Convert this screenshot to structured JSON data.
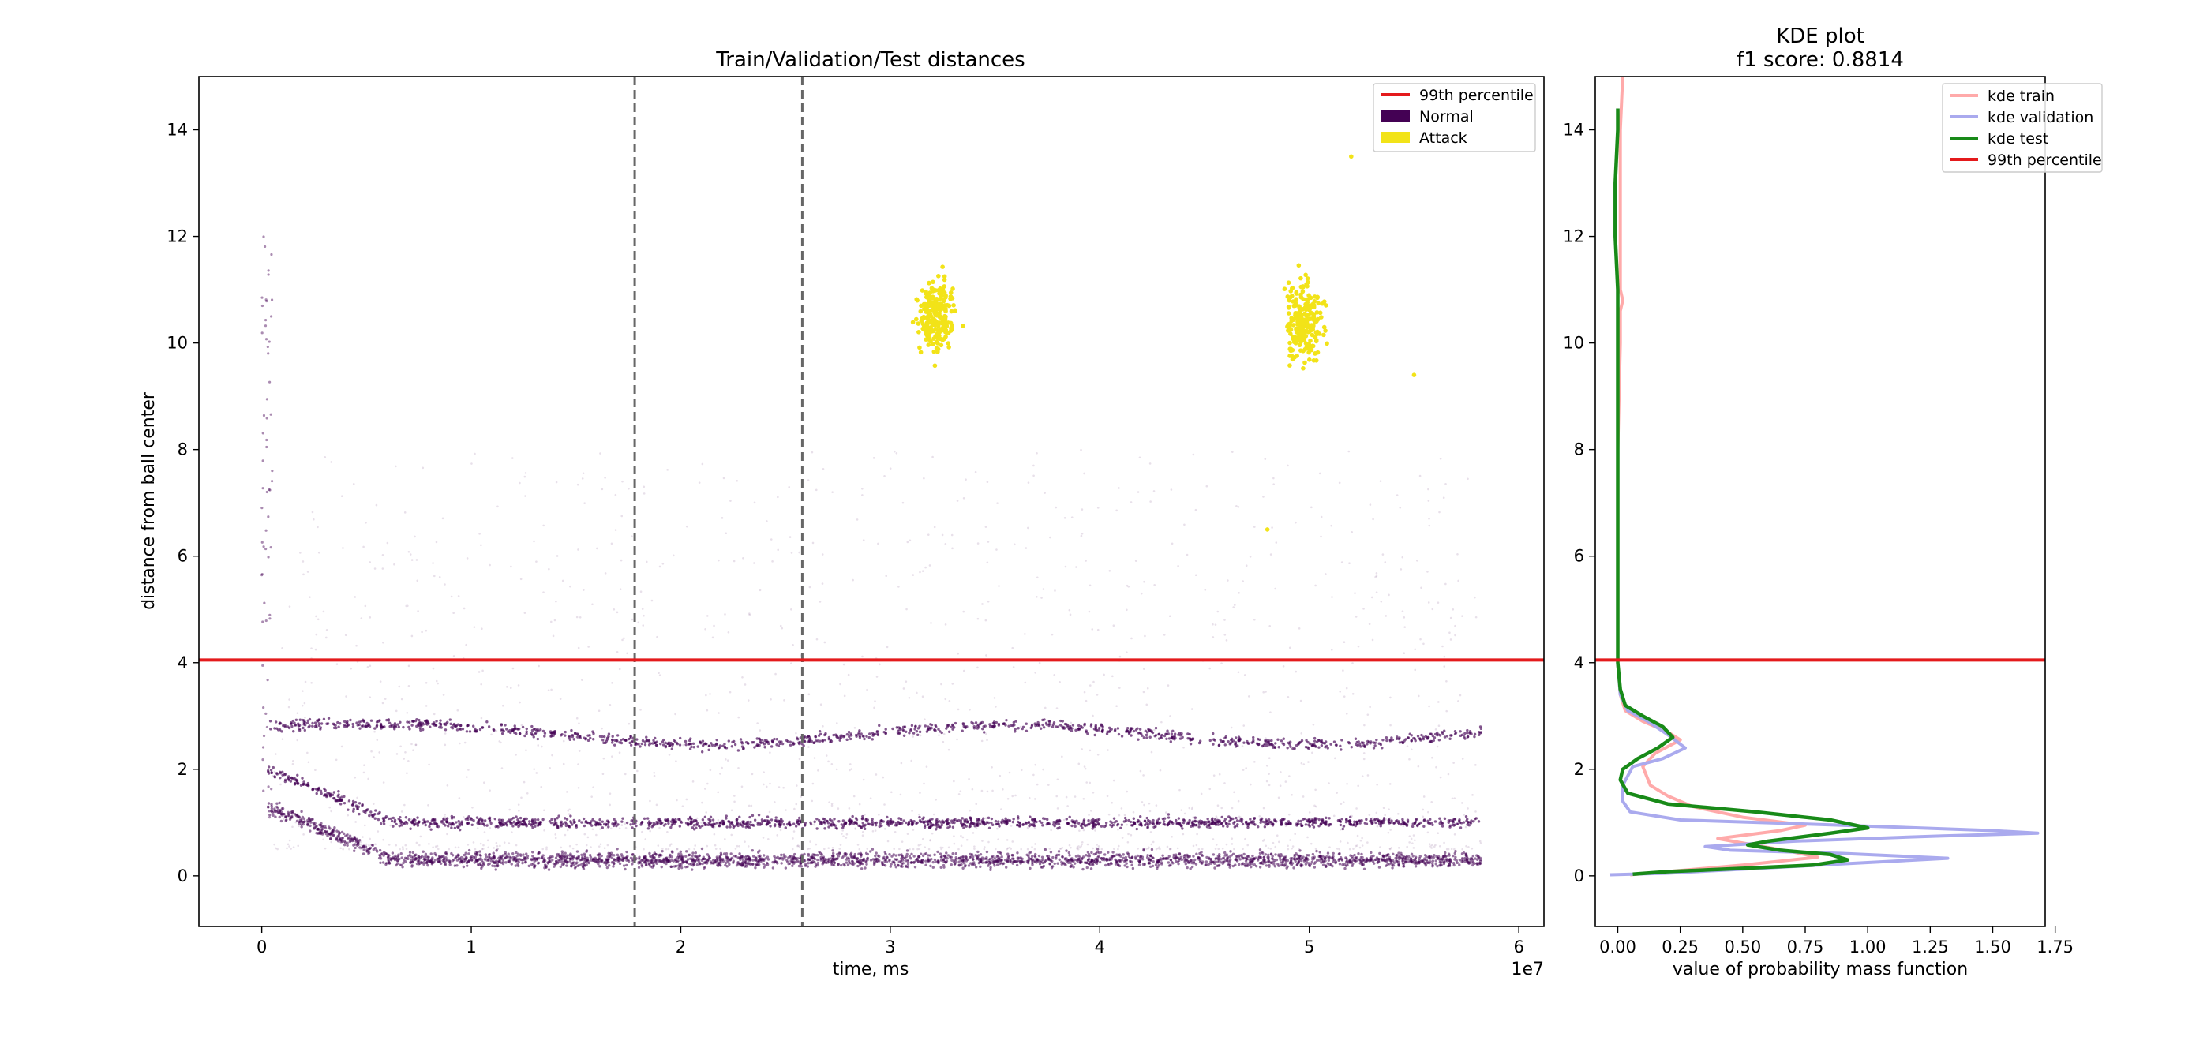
{
  "chart_data": [
    {
      "type": "scatter",
      "title": "Train/Validation/Test distances",
      "xlabel": "time, ms",
      "ylabel": "distance from ball center",
      "x_offset_text": "1e7",
      "xlim": [
        -0.3,
        6.12
      ],
      "ylim": [
        -0.95,
        15.0
      ],
      "x_ticks": [
        0,
        1,
        2,
        3,
        4,
        5,
        6
      ],
      "x_tick_labels": [
        "0",
        "1",
        "2",
        "3",
        "4",
        "5",
        "6"
      ],
      "y_ticks": [
        0,
        2,
        4,
        6,
        8,
        10,
        12,
        14
      ],
      "y_tick_labels": [
        "0",
        "2",
        "4",
        "6",
        "8",
        "10",
        "12",
        "14"
      ],
      "grid": false,
      "legend_position": "top-right",
      "split_lines_x": [
        1.78,
        2.58
      ],
      "threshold": {
        "name": "99th percentile",
        "y": 4.05,
        "color": "#e41a1c"
      },
      "series": [
        {
          "name": "Normal",
          "color": "#440154",
          "bands": [
            {
              "x": [
                0.03,
                5.82
              ],
              "y_start": 1.3,
              "y_end": 0.3
            },
            {
              "x": [
                0.03,
                5.82
              ],
              "y_start": 2.0,
              "y_end": 1.0
            },
            {
              "x": [
                0.04,
                5.82
              ],
              "y_start": 2.8,
              "y_end": 2.65
            }
          ]
        },
        {
          "name": "Attack",
          "color": "#f2e318",
          "clusters": [
            {
              "x": [
                3.05,
                3.45
              ],
              "y": [
                8.7,
                12.1
              ],
              "center": [
                3.22,
                10.5
              ]
            },
            {
              "x": [
                4.8,
                5.2
              ],
              "y": [
                8.7,
                12.7
              ],
              "center": [
                4.98,
                10.4
              ]
            }
          ],
          "outliers": [
            {
              "x": 4.8,
              "y": 6.5
            },
            {
              "x": 5.5,
              "y": 9.4
            },
            {
              "x": 5.2,
              "y": 13.5
            }
          ]
        }
      ]
    },
    {
      "type": "line",
      "title": "KDE plot\nf1 score: 0.8814",
      "title_lines": [
        "KDE plot",
        "f1 score: 0.8814"
      ],
      "xlabel": "value of probability mass function",
      "ylabel": "",
      "xlim": [
        -0.09,
        1.71
      ],
      "ylim": [
        -0.95,
        15.0
      ],
      "x_ticks": [
        0.0,
        0.25,
        0.5,
        0.75,
        1.0,
        1.25,
        1.5,
        1.75
      ],
      "x_tick_labels": [
        "0.00",
        "0.25",
        "0.50",
        "0.75",
        "1.00",
        "1.25",
        "1.50",
        "1.75"
      ],
      "y_ticks": [
        0,
        2,
        4,
        6,
        8,
        10,
        12,
        14
      ],
      "y_tick_labels": [
        "0",
        "2",
        "4",
        "6",
        "8",
        "10",
        "12",
        "14"
      ],
      "grid": false,
      "legend_position": "top-right",
      "threshold": {
        "name": "99th percentile",
        "y": 4.05,
        "color": "#e41a1c"
      },
      "series": [
        {
          "name": "kde train",
          "color": "#ffaaaa",
          "points": [
            [
              0.02,
              15.0
            ],
            [
              0.01,
              14.0
            ],
            [
              0.01,
              13.0
            ],
            [
              0.01,
              12.0
            ],
            [
              0.01,
              11.0
            ],
            [
              0.02,
              10.8
            ],
            [
              0.01,
              10.6
            ],
            [
              0.01,
              10.0
            ],
            [
              0.0,
              8.0
            ],
            [
              0.0,
              6.0
            ],
            [
              0.0,
              4.0
            ],
            [
              0.01,
              3.4
            ],
            [
              0.03,
              3.1
            ],
            [
              0.1,
              2.9
            ],
            [
              0.2,
              2.7
            ],
            [
              0.25,
              2.55
            ],
            [
              0.15,
              2.3
            ],
            [
              0.1,
              2.05
            ],
            [
              0.13,
              1.7
            ],
            [
              0.2,
              1.5
            ],
            [
              0.3,
              1.3
            ],
            [
              0.5,
              1.1
            ],
            [
              0.75,
              0.95
            ],
            [
              0.65,
              0.85
            ],
            [
              0.4,
              0.7
            ],
            [
              0.7,
              0.45
            ],
            [
              0.8,
              0.35
            ],
            [
              0.5,
              0.2
            ],
            [
              0.25,
              0.1
            ],
            [
              0.05,
              0.02
            ]
          ]
        },
        {
          "name": "kde validation",
          "color": "#aaaaee",
          "points": [
            [
              0.0,
              10.0
            ],
            [
              0.0,
              8.0
            ],
            [
              0.0,
              6.0
            ],
            [
              0.0,
              4.0
            ],
            [
              0.01,
              3.4
            ],
            [
              0.04,
              3.1
            ],
            [
              0.12,
              2.9
            ],
            [
              0.2,
              2.65
            ],
            [
              0.27,
              2.4
            ],
            [
              0.18,
              2.2
            ],
            [
              0.06,
              2.05
            ],
            [
              0.02,
              1.7
            ],
            [
              0.02,
              1.4
            ],
            [
              0.05,
              1.2
            ],
            [
              0.25,
              1.05
            ],
            [
              0.9,
              0.95
            ],
            [
              1.5,
              0.85
            ],
            [
              1.68,
              0.8
            ],
            [
              1.3,
              0.75
            ],
            [
              0.7,
              0.65
            ],
            [
              0.35,
              0.55
            ],
            [
              0.45,
              0.48
            ],
            [
              0.9,
              0.42
            ],
            [
              1.32,
              0.33
            ],
            [
              1.0,
              0.25
            ],
            [
              0.6,
              0.15
            ],
            [
              0.2,
              0.05
            ],
            [
              -0.03,
              0.02
            ]
          ]
        },
        {
          "name": "kde test",
          "color": "#188a18",
          "points": [
            [
              0.0,
              14.4
            ],
            [
              0.0,
              14.0
            ],
            [
              -0.01,
              13.0
            ],
            [
              -0.01,
              12.0
            ],
            [
              0.0,
              11.0
            ],
            [
              0.0,
              10.0
            ],
            [
              0.0,
              8.0
            ],
            [
              0.0,
              6.0
            ],
            [
              0.0,
              4.0
            ],
            [
              0.01,
              3.5
            ],
            [
              0.03,
              3.2
            ],
            [
              0.1,
              3.0
            ],
            [
              0.18,
              2.8
            ],
            [
              0.22,
              2.6
            ],
            [
              0.16,
              2.4
            ],
            [
              0.08,
              2.2
            ],
            [
              0.02,
              2.0
            ],
            [
              0.01,
              1.8
            ],
            [
              0.04,
              1.55
            ],
            [
              0.2,
              1.35
            ],
            [
              0.55,
              1.2
            ],
            [
              0.85,
              1.05
            ],
            [
              1.0,
              0.9
            ],
            [
              0.85,
              0.8
            ],
            [
              0.6,
              0.65
            ],
            [
              0.52,
              0.58
            ],
            [
              0.65,
              0.48
            ],
            [
              0.85,
              0.4
            ],
            [
              0.92,
              0.3
            ],
            [
              0.78,
              0.2
            ],
            [
              0.5,
              0.14
            ],
            [
              0.2,
              0.08
            ],
            [
              0.06,
              0.03
            ]
          ]
        }
      ]
    }
  ]
}
